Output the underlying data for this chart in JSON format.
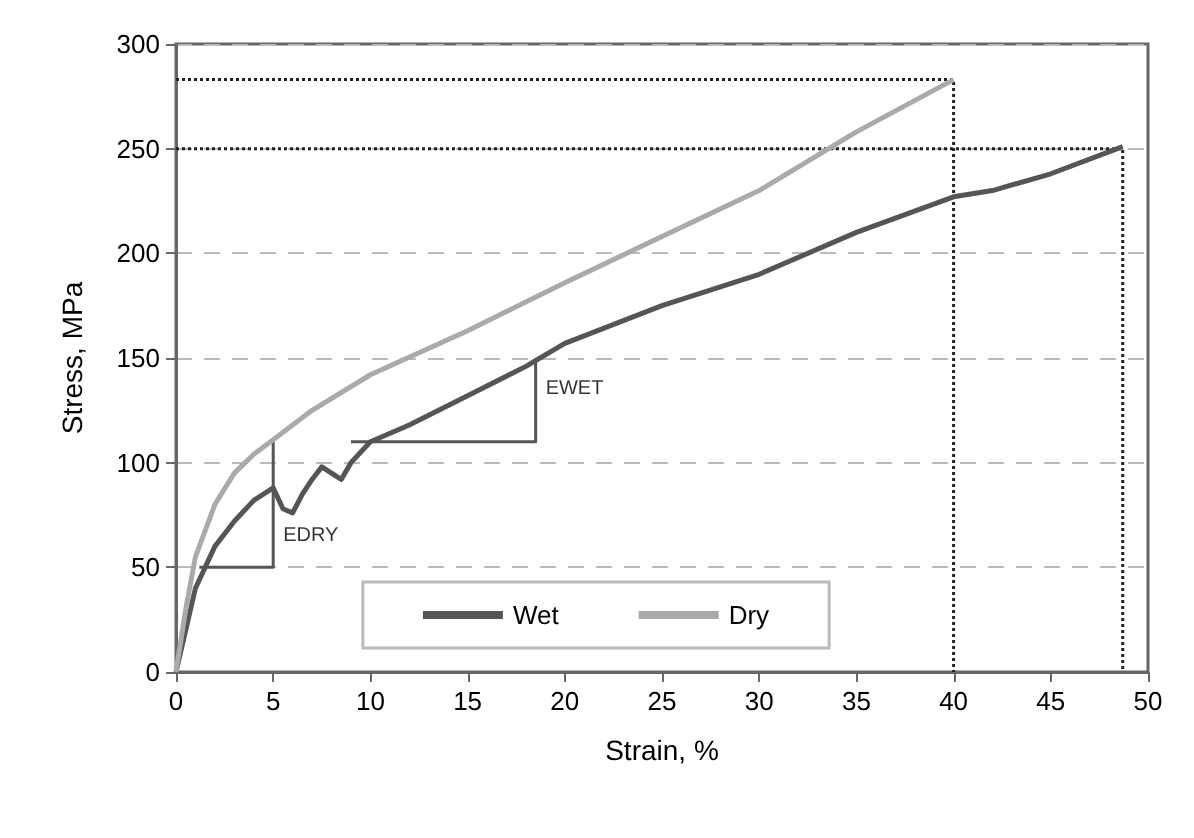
{
  "chart_data": {
    "type": "line",
    "xlabel": "Strain, %",
    "ylabel": "Stress, MPa",
    "xlim": [
      0,
      50
    ],
    "xticks": [
      0,
      5,
      10,
      15,
      20,
      25,
      30,
      35,
      40,
      45,
      50
    ],
    "ylim": [
      0,
      300
    ],
    "yticks": [
      0,
      50,
      100,
      150,
      200,
      250,
      300
    ],
    "grid": "y",
    "legend": "bottom",
    "marker": "none",
    "series": [
      {
        "name": "Wet",
        "color": "#555555",
        "x": [
          0,
          0.5,
          1,
          2,
          3,
          4,
          5,
          5.5,
          6,
          6.5,
          7,
          7.5,
          8,
          8.5,
          9,
          10,
          12,
          15,
          18,
          20,
          25,
          30,
          35,
          40,
          42,
          45,
          48.7
        ],
        "values": [
          0,
          20,
          40,
          60,
          72,
          82,
          88,
          78,
          76,
          85,
          92,
          98,
          95,
          92,
          100,
          110,
          118,
          132,
          146,
          157,
          175,
          190,
          210,
          227,
          230,
          238,
          251
        ]
      },
      {
        "name": "Dry",
        "color": "#aaaaaa",
        "x": [
          0,
          0.5,
          1,
          2,
          3,
          4,
          5,
          7,
          10,
          15,
          20,
          25,
          30,
          35,
          40
        ],
        "values": [
          0,
          30,
          55,
          80,
          95,
          104,
          111,
          125,
          142,
          163,
          186,
          208,
          230,
          258,
          283
        ]
      },
      {
        "color": "#555555",
        "x": [
          1.2,
          5,
          5
        ],
        "values": [
          50,
          50,
          111
        ]
      },
      {
        "color": "#555555",
        "x": [
          9,
          18.5,
          18.5
        ],
        "values": [
          110,
          110,
          150
        ]
      },
      {
        "color": "#222222",
        "line_style": "dotted",
        "x": [
          0,
          40,
          40
        ],
        "values": [
          283,
          283,
          0
        ]
      },
      {
        "color": "#222222",
        "line_style": "dotted",
        "x": [
          0,
          48.7,
          48.7
        ],
        "values": [
          250,
          250,
          0
        ]
      }
    ],
    "annotations": [
      {
        "text": "EDRY",
        "x": 5,
        "y": 65
      },
      {
        "text": "EWET",
        "x": 18.5,
        "y": 135
      }
    ]
  }
}
